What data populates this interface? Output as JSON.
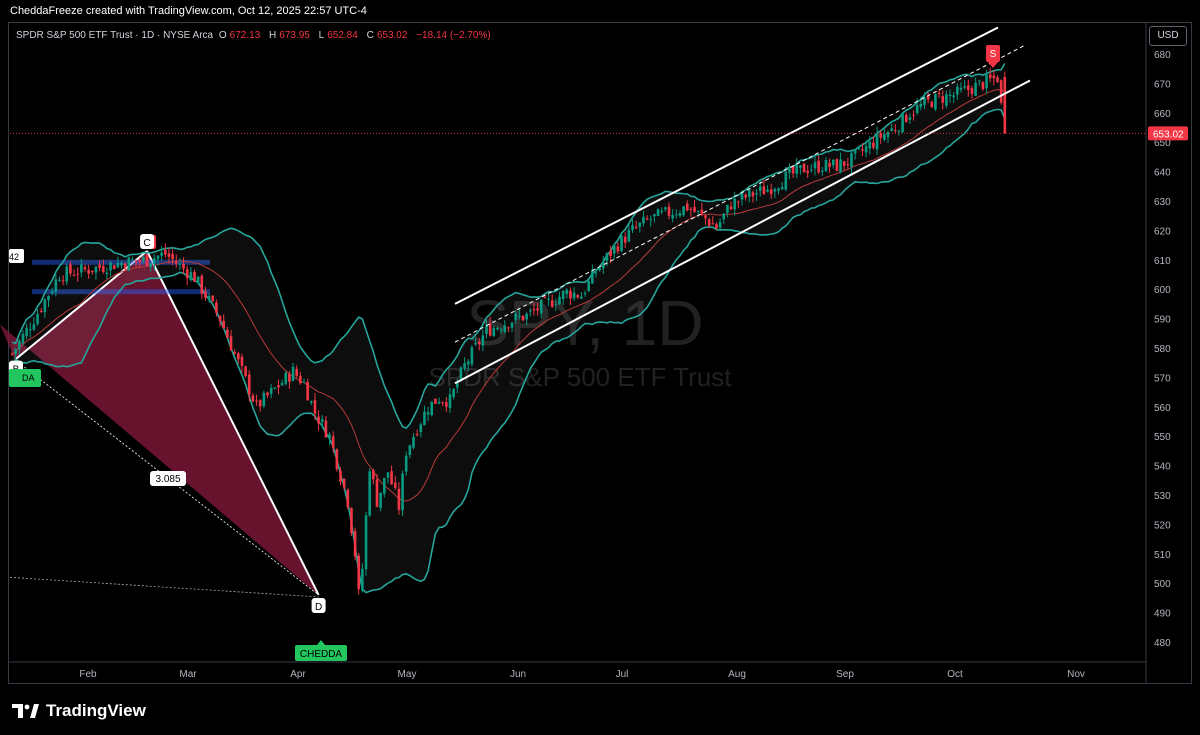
{
  "header": {
    "credit": "CheddaFreeze created with TradingView.com, Oct 12, 2025 22:57 UTC-4"
  },
  "legend": {
    "title": "SPDR S&P 500 ETF Trust · 1D · NYSE Arca",
    "o_label": "O",
    "o": "672.13",
    "h_label": "H",
    "h": "673.95",
    "l_label": "L",
    "l": "652.84",
    "c_label": "C",
    "c": "653.02",
    "change": "−18.14 (−2.70%)"
  },
  "currency": "USD",
  "watermark": {
    "symbol": "SPY, 1D",
    "name": "SPDR S&P 500 ETF Trust"
  },
  "footer": {
    "brand": "TradingView"
  },
  "colors": {
    "up": "#089981",
    "down": "#f23645",
    "band": "#26a69a",
    "basis": "#b83a3a",
    "pattern_fill": "#8b1a3d",
    "channel": "#ffffff",
    "signal": "#22c55e"
  },
  "chart_data": {
    "type": "candlestick",
    "symbol": "SPY",
    "timeframe": "1D",
    "ylim": [
      475,
      685
    ],
    "y_ticks": [
      480,
      490,
      500,
      510,
      520,
      530,
      540,
      550,
      560,
      570,
      580,
      590,
      600,
      610,
      620,
      630,
      640,
      650,
      660,
      670,
      680
    ],
    "x_ticks": [
      "Feb",
      "Mar",
      "Apr",
      "May",
      "Jun",
      "Jul",
      "Aug",
      "Sep",
      "Oct",
      "Nov"
    ],
    "last_price": "653.02",
    "ohlc_last": {
      "o": 672.13,
      "h": 673.95,
      "l": 652.84,
      "c": 653.02,
      "change": -18.14,
      "change_pct": -2.7
    },
    "price_path": [
      [
        0,
        578
      ],
      [
        7,
        592
      ],
      [
        13,
        605
      ],
      [
        22,
        607
      ],
      [
        30,
        609
      ],
      [
        37,
        610
      ],
      [
        42,
        612
      ],
      [
        50,
        604
      ],
      [
        57,
        590
      ],
      [
        62,
        575
      ],
      [
        67,
        560
      ],
      [
        72,
        566
      ],
      [
        77,
        572
      ],
      [
        80,
        568
      ],
      [
        83,
        558
      ],
      [
        87,
        550
      ],
      [
        92,
        528
      ],
      [
        94,
        510
      ],
      [
        95,
        496
      ],
      [
        96,
        505
      ],
      [
        98,
        540
      ],
      [
        100,
        528
      ],
      [
        103,
        538
      ],
      [
        106,
        526
      ],
      [
        108,
        545
      ],
      [
        111,
        553
      ],
      [
        114,
        560
      ],
      [
        117,
        563
      ],
      [
        120,
        562
      ],
      [
        124,
        574
      ],
      [
        127,
        580
      ],
      [
        130,
        586
      ],
      [
        134,
        588
      ],
      [
        138,
        590
      ],
      [
        141,
        591
      ],
      [
        145,
        594
      ],
      [
        148,
        596
      ],
      [
        152,
        599
      ],
      [
        156,
        598
      ],
      [
        160,
        606
      ],
      [
        165,
        614
      ],
      [
        170,
        620
      ],
      [
        175,
        624
      ],
      [
        180,
        626
      ],
      [
        185,
        628
      ],
      [
        190,
        624
      ],
      [
        193,
        621
      ],
      [
        197,
        629
      ],
      [
        202,
        632
      ],
      [
        207,
        634
      ],
      [
        212,
        638
      ],
      [
        217,
        641
      ],
      [
        222,
        642
      ],
      [
        226,
        642
      ],
      [
        230,
        644
      ],
      [
        234,
        648
      ],
      [
        238,
        652
      ],
      [
        242,
        655
      ],
      [
        246,
        660
      ],
      [
        250,
        663
      ],
      [
        254,
        665
      ],
      [
        258,
        666
      ],
      [
        262,
        668
      ],
      [
        266,
        670
      ],
      [
        270,
        672
      ],
      [
        272,
        653
      ]
    ],
    "harmonic_pattern": {
      "points": [
        "B",
        "C",
        "D"
      ],
      "ratio_label": "3.085",
      "levels": [
        "42"
      ]
    },
    "signals": [
      {
        "label": "CHEDDA",
        "type": "buy"
      },
      {
        "label": "S",
        "type": "sell"
      }
    ],
    "partial_labels": [
      "DA"
    ]
  }
}
